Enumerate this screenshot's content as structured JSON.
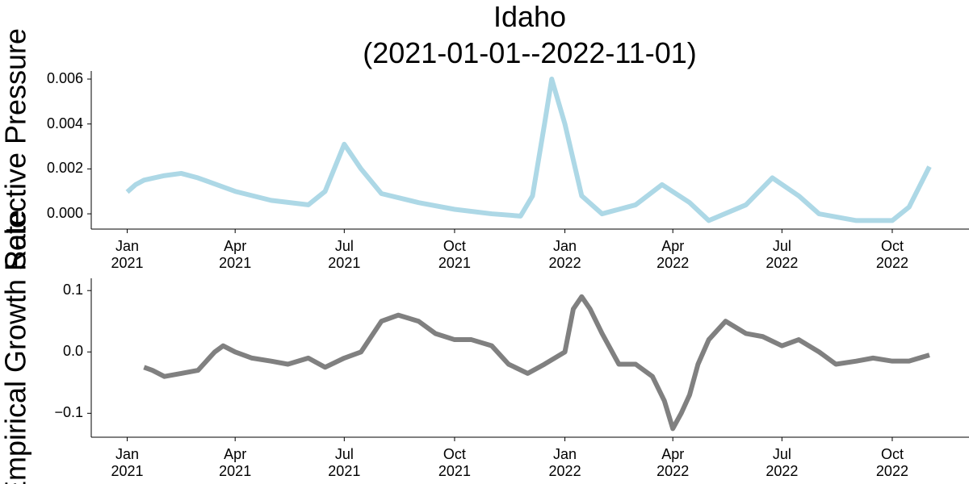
{
  "chart_data": [
    {
      "type": "line",
      "title": "Idaho",
      "subtitle": "(2021-01-01--2022-11-01)",
      "ylabel": "Selective Pressure",
      "x": [
        "2021-01-01",
        "2021-01-08",
        "2021-01-15",
        "2021-02-01",
        "2021-02-15",
        "2021-03-01",
        "2021-04-01",
        "2021-05-01",
        "2021-06-01",
        "2021-06-15",
        "2021-07-01",
        "2021-07-15",
        "2021-08-01",
        "2021-09-01",
        "2021-10-01",
        "2021-11-01",
        "2021-11-25",
        "2021-12-05",
        "2021-12-15",
        "2021-12-21",
        "2022-01-01",
        "2022-01-15",
        "2022-02-01",
        "2022-03-01",
        "2022-03-23",
        "2022-04-15",
        "2022-05-01",
        "2022-06-01",
        "2022-06-23",
        "2022-07-15",
        "2022-08-01",
        "2022-09-01",
        "2022-10-01",
        "2022-10-15",
        "2022-11-01"
      ],
      "series": [
        {
          "color": "#add8e6",
          "values": [
            0.00097,
            0.0013,
            0.0015,
            0.0017,
            0.0018,
            0.0016,
            0.001,
            0.0006,
            0.0004,
            0.001,
            0.0031,
            0.002,
            0.0009,
            0.0005,
            0.0002,
            0.0,
            -0.0001,
            0.0008,
            0.004,
            0.006,
            0.004,
            0.0008,
            0.0,
            0.0004,
            0.0013,
            0.0005,
            -0.0003,
            0.0004,
            0.0016,
            0.0008,
            0.0,
            -0.0003,
            -0.0003,
            0.0003,
            0.0021
          ]
        }
      ],
      "xlim": [
        "2020-12-02",
        "2022-12-04"
      ],
      "ylim": [
        -0.00068,
        0.00636
      ],
      "xticks": [
        {
          "value": "2021-01-01",
          "label": "Jan 2021"
        },
        {
          "value": "2021-04-01",
          "label": "Apr 2021"
        },
        {
          "value": "2021-07-01",
          "label": "Jul 2021"
        },
        {
          "value": "2021-10-01",
          "label": "Oct 2021"
        },
        {
          "value": "2022-01-01",
          "label": "Jan 2022"
        },
        {
          "value": "2022-04-01",
          "label": "Apr 2022"
        },
        {
          "value": "2022-07-01",
          "label": "Jul 2022"
        },
        {
          "value": "2022-10-01",
          "label": "Oct 2022"
        }
      ],
      "yticks": [
        {
          "value": 0,
          "label": "0.000"
        },
        {
          "value": 0.002,
          "label": "0.002"
        },
        {
          "value": 0.004,
          "label": "0.004"
        },
        {
          "value": 0.006,
          "label": "0.006"
        }
      ],
      "grid": false
    },
    {
      "type": "line",
      "ylabel": "Empirical Growth Rate",
      "x": [
        "2021-01-15",
        "2021-01-22",
        "2021-02-01",
        "2021-02-15",
        "2021-03-01",
        "2021-03-15",
        "2021-03-22",
        "2021-04-01",
        "2021-04-15",
        "2021-05-01",
        "2021-05-15",
        "2021-06-01",
        "2021-06-15",
        "2021-07-01",
        "2021-07-15",
        "2021-08-01",
        "2021-08-15",
        "2021-09-01",
        "2021-09-15",
        "2021-10-01",
        "2021-10-15",
        "2021-11-01",
        "2021-11-15",
        "2021-12-01",
        "2021-12-15",
        "2022-01-01",
        "2022-01-08",
        "2022-01-15",
        "2022-01-22",
        "2022-02-01",
        "2022-02-15",
        "2022-03-01",
        "2022-03-15",
        "2022-03-25",
        "2022-04-01",
        "2022-04-08",
        "2022-04-15",
        "2022-04-22",
        "2022-05-01",
        "2022-05-15",
        "2022-06-01",
        "2022-06-15",
        "2022-07-01",
        "2022-07-15",
        "2022-08-01",
        "2022-08-15",
        "2022-09-01",
        "2022-09-15",
        "2022-10-01",
        "2022-10-15",
        "2022-11-01"
      ],
      "series": [
        {
          "color": "#808080",
          "values": [
            -0.025,
            -0.03,
            -0.04,
            -0.035,
            -0.03,
            0.0,
            0.01,
            0.0,
            -0.01,
            -0.015,
            -0.02,
            -0.01,
            -0.025,
            -0.01,
            0.0,
            0.05,
            0.06,
            0.05,
            0.03,
            0.02,
            0.02,
            0.01,
            -0.02,
            -0.035,
            -0.02,
            0.0,
            0.07,
            0.09,
            0.07,
            0.03,
            -0.02,
            -0.02,
            -0.04,
            -0.08,
            -0.125,
            -0.1,
            -0.07,
            -0.02,
            0.02,
            0.05,
            0.03,
            0.025,
            0.01,
            0.02,
            0.0,
            -0.02,
            -0.015,
            -0.01,
            -0.015,
            -0.015,
            -0.005
          ]
        }
      ],
      "xlim": [
        "2020-12-02",
        "2022-12-04"
      ],
      "ylim": [
        -0.139,
        0.12
      ],
      "xticks": [
        {
          "value": "2021-01-01",
          "label": "Jan 2021"
        },
        {
          "value": "2021-04-01",
          "label": "Apr 2021"
        },
        {
          "value": "2021-07-01",
          "label": "Jul 2021"
        },
        {
          "value": "2021-10-01",
          "label": "Oct 2021"
        },
        {
          "value": "2022-01-01",
          "label": "Jan 2022"
        },
        {
          "value": "2022-04-01",
          "label": "Apr 2022"
        },
        {
          "value": "2022-07-01",
          "label": "Jul 2022"
        },
        {
          "value": "2022-10-01",
          "label": "Oct 2022"
        }
      ],
      "yticks": [
        {
          "value": -0.1,
          "label": "−0.1"
        },
        {
          "value": 0,
          "label": "0.0"
        },
        {
          "value": 0.1,
          "label": "0.1"
        }
      ],
      "grid": false
    }
  ]
}
